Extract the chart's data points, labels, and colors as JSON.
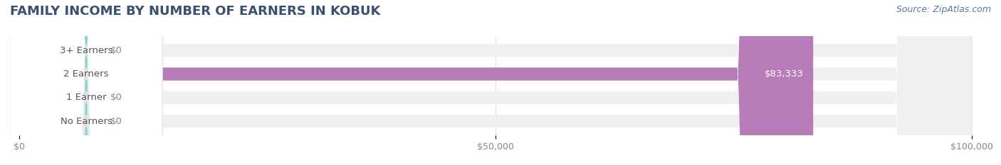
{
  "title": "FAMILY INCOME BY NUMBER OF EARNERS IN KOBUK",
  "source": "Source: ZipAtlas.com",
  "categories": [
    "No Earners",
    "1 Earner",
    "2 Earners",
    "3+ Earners"
  ],
  "values": [
    0,
    0,
    83333,
    0
  ],
  "bar_colors": [
    "#f4a0a0",
    "#a8c8f0",
    "#b87db8",
    "#7fd4d4"
  ],
  "label_colors": [
    "#f4a0a0",
    "#a8c8f0",
    "#b87db8",
    "#7fd4d4"
  ],
  "background_color": "#ffffff",
  "bar_bg_color": "#f0f0f0",
  "xlim": [
    0,
    100000
  ],
  "xticks": [
    0,
    50000,
    100000
  ],
  "xtick_labels": [
    "$0",
    "$50,000",
    "$100,000"
  ],
  "title_color": "#3a5070",
  "title_fontsize": 13,
  "bar_height": 0.55,
  "label_fontsize": 9.5,
  "value_label_color": "#ffffff",
  "value_label_zero_color": "#888888",
  "source_color": "#5a7a9a",
  "source_fontsize": 9
}
